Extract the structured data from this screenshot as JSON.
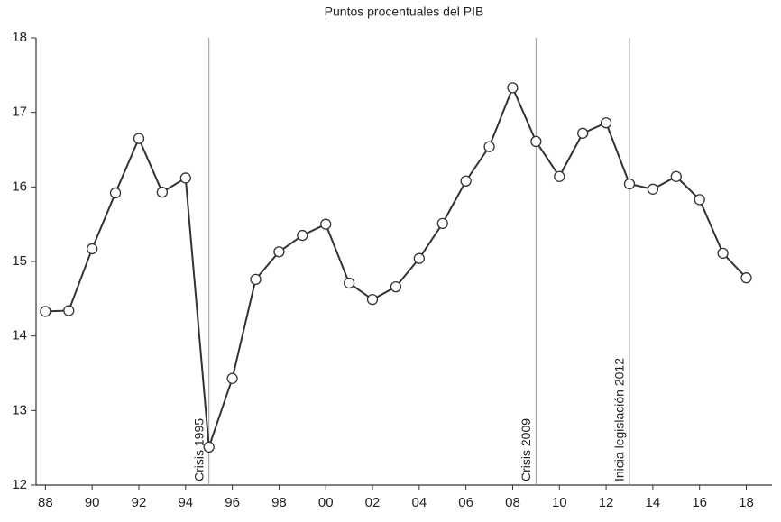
{
  "chart_data": {
    "type": "line",
    "title": "Puntos procentuales del PIB",
    "x": [
      1988,
      1989,
      1990,
      1991,
      1992,
      1993,
      1994,
      1995,
      1996,
      1997,
      1998,
      1999,
      2000,
      2001,
      2002,
      2003,
      2004,
      2005,
      2006,
      2007,
      2008,
      2009,
      2010,
      2011,
      2012,
      2013,
      2014,
      2015,
      2016,
      2017,
      2018
    ],
    "series": [
      {
        "color": "#333333",
        "values": [
          14.33,
          14.34,
          15.17,
          15.92,
          16.65,
          15.93,
          16.12,
          12.51,
          13.43,
          14.76,
          15.13,
          15.35,
          15.5,
          14.71,
          14.49,
          14.66,
          15.04,
          15.51,
          16.08,
          16.54,
          17.33,
          16.61,
          16.14,
          16.72,
          16.86,
          16.04,
          15.97,
          16.14,
          15.83,
          15.11,
          14.78
        ]
      }
    ],
    "xlim": [
      1987.6,
      2019.1
    ],
    "xticks": [
      {
        "value": 1988,
        "label": "88"
      },
      {
        "value": 1990,
        "label": "90"
      },
      {
        "value": 1992,
        "label": "92"
      },
      {
        "value": 1994,
        "label": "94"
      },
      {
        "value": 1996,
        "label": "96"
      },
      {
        "value": 1998,
        "label": "98"
      },
      {
        "value": 2000,
        "label": "00"
      },
      {
        "value": 2002,
        "label": "02"
      },
      {
        "value": 2004,
        "label": "04"
      },
      {
        "value": 2006,
        "label": "06"
      },
      {
        "value": 2008,
        "label": "08"
      },
      {
        "value": 2010,
        "label": "10"
      },
      {
        "value": 2012,
        "label": "12"
      },
      {
        "value": 2014,
        "label": "14"
      },
      {
        "value": 2016,
        "label": "16"
      },
      {
        "value": 2018,
        "label": "18"
      }
    ],
    "ylim": [
      12,
      18
    ],
    "yticks": [
      12,
      13,
      14,
      15,
      16,
      17,
      18
    ],
    "annotations": [
      {
        "text": "Crisis 1995",
        "x": 1995
      },
      {
        "text": "Crisis 2009",
        "x": 2009
      },
      {
        "text": "Inicia legislación 2012",
        "x": 2013
      }
    ]
  }
}
